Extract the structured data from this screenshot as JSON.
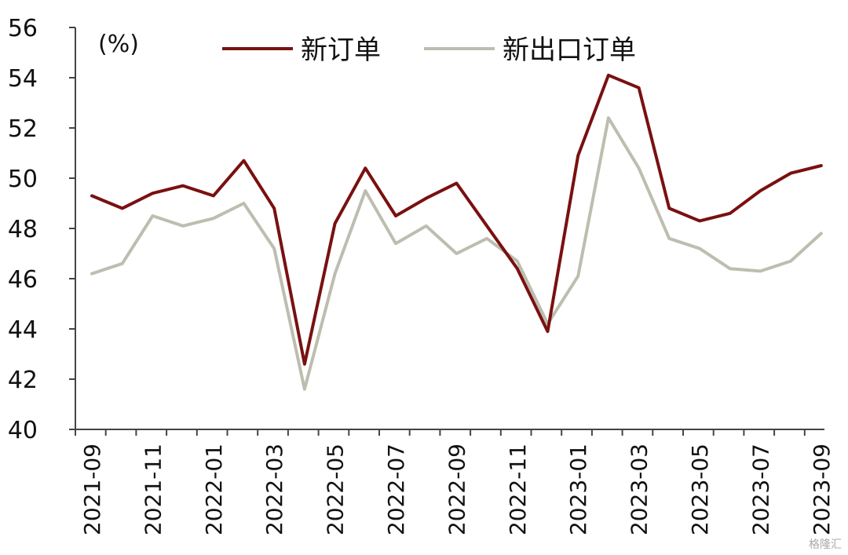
{
  "chart_data": {
    "type": "line",
    "unit_label": "(%)",
    "x": [
      "2021-09",
      "2021-10",
      "2021-11",
      "2021-12",
      "2022-01",
      "2022-02",
      "2022-03",
      "2022-04",
      "2022-05",
      "2022-06",
      "2022-07",
      "2022-08",
      "2022-09",
      "2022-10",
      "2022-11",
      "2022-12",
      "2023-01",
      "2023-02",
      "2023-03",
      "2023-04",
      "2023-05",
      "2023-06",
      "2023-07",
      "2023-08",
      "2023-09"
    ],
    "x_tick_labels": [
      "2021-09",
      "2021-11",
      "2022-01",
      "2022-03",
      "2022-05",
      "2022-07",
      "2022-09",
      "2022-11",
      "2023-01",
      "2023-03",
      "2023-05",
      "2023-07",
      "2023-09"
    ],
    "ylim": [
      40,
      56
    ],
    "y_ticks": [
      40,
      42,
      44,
      46,
      48,
      50,
      52,
      54,
      56
    ],
    "series": [
      {
        "name": "新订单",
        "color": "#7a1010",
        "values": [
          49.3,
          48.8,
          49.4,
          49.7,
          49.3,
          50.7,
          48.8,
          42.6,
          48.2,
          50.4,
          48.5,
          49.2,
          49.8,
          48.1,
          46.4,
          43.9,
          50.9,
          54.1,
          53.6,
          48.8,
          48.3,
          48.6,
          49.5,
          50.2,
          50.5
        ]
      },
      {
        "name": "新出口订单",
        "color": "#bdbdb0",
        "values": [
          46.2,
          46.6,
          48.5,
          48.1,
          48.4,
          49.0,
          47.2,
          41.6,
          46.2,
          49.5,
          47.4,
          48.1,
          47.0,
          47.6,
          46.7,
          44.2,
          46.1,
          52.4,
          50.4,
          47.6,
          47.2,
          46.4,
          46.3,
          46.7,
          47.8
        ]
      }
    ],
    "legend_position": "top",
    "grid": false
  },
  "watermark": "格隆汇"
}
